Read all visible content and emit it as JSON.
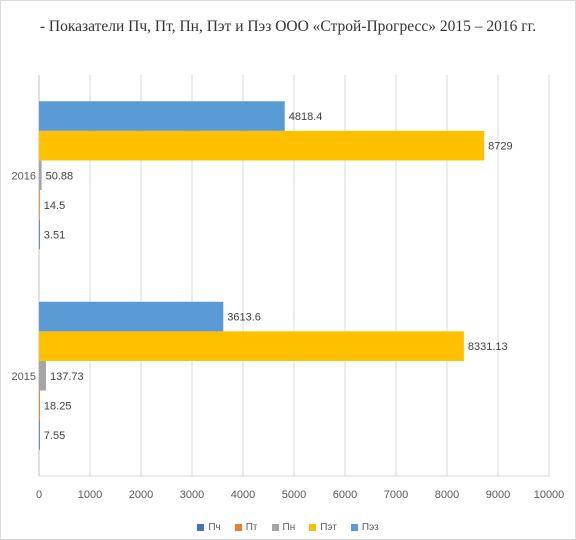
{
  "chart_data": {
    "type": "bar",
    "orientation": "horizontal",
    "title": "- Показатели Пч, Пт, Пн, Пэт и Пэз ООО «Строй-Прогресс» 2015 – 2016 гг.",
    "categories": [
      "2015",
      "2016"
    ],
    "series": [
      {
        "name": "Пч",
        "color": "#4472c4",
        "values": [
          7.55,
          3.51
        ]
      },
      {
        "name": "Пт",
        "color": "#ed7d31",
        "values": [
          18.25,
          14.5
        ]
      },
      {
        "name": "Пн",
        "color": "#a5a5a5",
        "values": [
          137.73,
          50.88
        ]
      },
      {
        "name": "Пэт",
        "color": "#ffc000",
        "values": [
          8331.13,
          8729
        ]
      },
      {
        "name": "Пэз",
        "color": "#5b9bd5",
        "values": [
          3613.6,
          4818.4
        ]
      }
    ],
    "data_labels": [
      [
        "7.55",
        "3.51"
      ],
      [
        "18.25",
        "14.5"
      ],
      [
        "137.73",
        "50.88"
      ],
      [
        "8331.13",
        "8729"
      ],
      [
        "3613.6",
        "4818.4"
      ]
    ],
    "xlim": [
      0,
      10000
    ],
    "xticks": [
      "0",
      "1000",
      "2000",
      "3000",
      "4000",
      "5000",
      "6000",
      "7000",
      "8000",
      "9000",
      "10000"
    ],
    "grid": true,
    "legend_position": "bottom"
  }
}
